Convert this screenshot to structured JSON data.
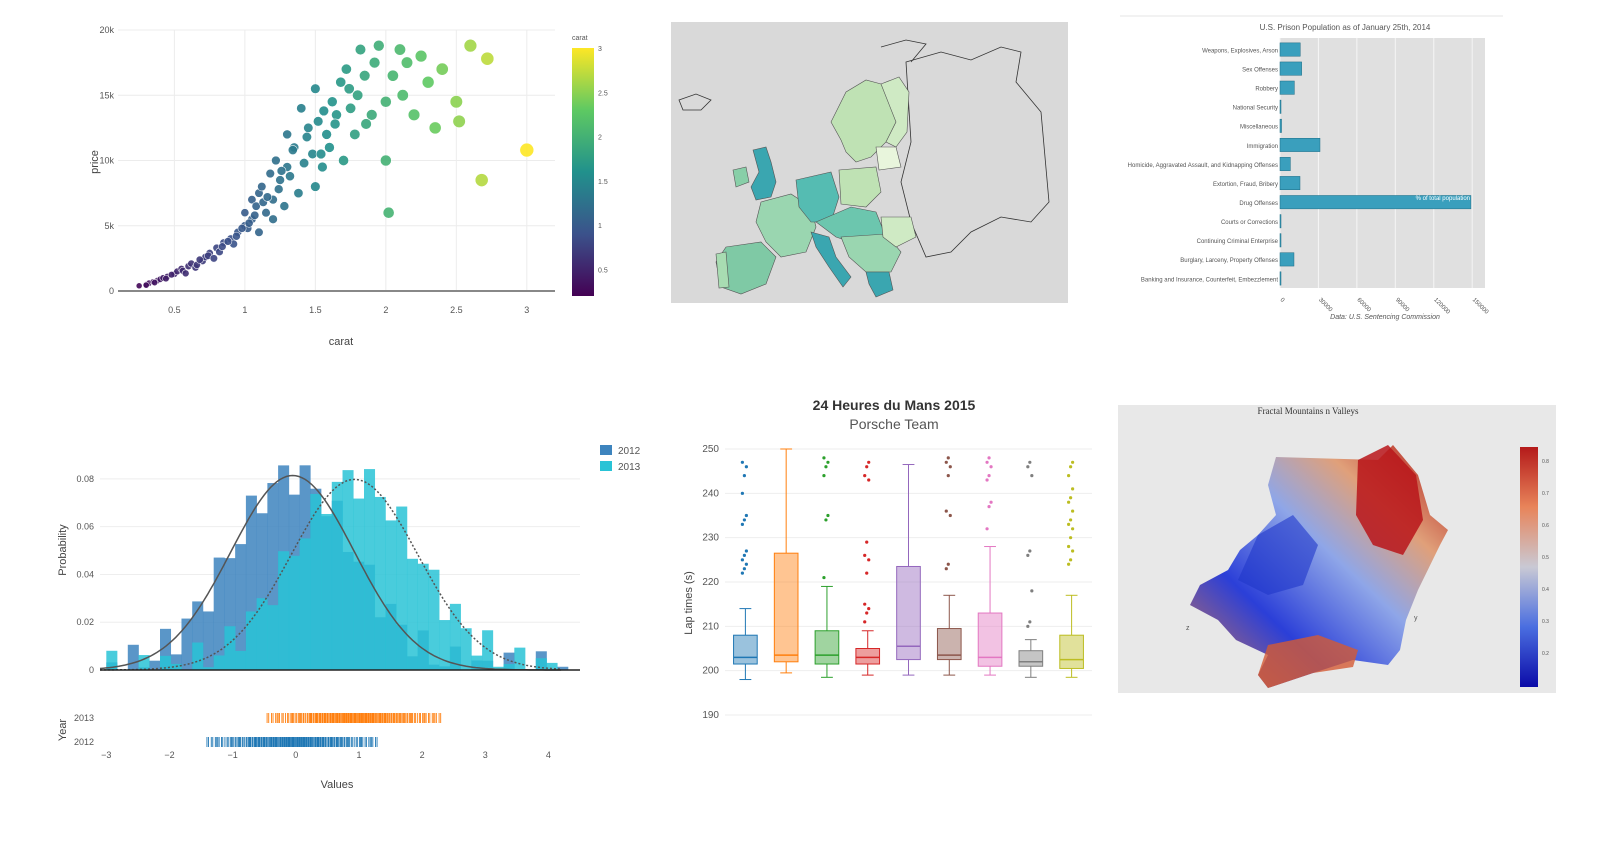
{
  "charts": {
    "scatter": {
      "chart_data": {
        "type": "scatter",
        "xlabel": "carat",
        "ylabel": "price",
        "x_ticks": [
          "0.5",
          "1",
          "1.5",
          "2",
          "2.5",
          "3"
        ],
        "y_ticks": [
          "0",
          "5k",
          "10k",
          "15k",
          "20k"
        ],
        "xlim": [
          0.1,
          3.2
        ],
        "ylim": [
          0,
          20000
        ],
        "colorbar": {
          "title": "carat",
          "ticks": [
            "0.5",
            "1",
            "1.5",
            "2",
            "2.5",
            "3"
          ],
          "range": [
            0.2,
            3.0
          ],
          "colors": [
            "#440154",
            "#3b528b",
            "#21918c",
            "#5ec962",
            "#fde725"
          ]
        },
        "points": [
          [
            0.25,
            400
          ],
          [
            0.3,
            500
          ],
          [
            0.32,
            600
          ],
          [
            0.35,
            700
          ],
          [
            0.38,
            800
          ],
          [
            0.4,
            900
          ],
          [
            0.42,
            1000
          ],
          [
            0.45,
            1100
          ],
          [
            0.5,
            1300
          ],
          [
            0.52,
            1500
          ],
          [
            0.55,
            1700
          ],
          [
            0.6,
            1900
          ],
          [
            0.62,
            2100
          ],
          [
            0.65,
            1800
          ],
          [
            0.7,
            2300
          ],
          [
            0.72,
            2600
          ],
          [
            0.75,
            2900
          ],
          [
            0.8,
            3300
          ],
          [
            0.82,
            3000
          ],
          [
            0.85,
            3700
          ],
          [
            0.9,
            4000
          ],
          [
            0.92,
            3600
          ],
          [
            0.95,
            4500
          ],
          [
            1.0,
            5000
          ],
          [
            1.0,
            6000
          ],
          [
            1.02,
            4800
          ],
          [
            1.05,
            5500
          ],
          [
            1.05,
            7000
          ],
          [
            1.08,
            6500
          ],
          [
            1.1,
            7500
          ],
          [
            1.1,
            4500
          ],
          [
            1.12,
            8000
          ],
          [
            1.15,
            6000
          ],
          [
            1.18,
            9000
          ],
          [
            1.2,
            5500
          ],
          [
            1.2,
            7000
          ],
          [
            1.22,
            10000
          ],
          [
            1.25,
            8500
          ],
          [
            1.28,
            6500
          ],
          [
            1.3,
            9500
          ],
          [
            1.3,
            12000
          ],
          [
            1.35,
            11000
          ],
          [
            1.38,
            7500
          ],
          [
            1.4,
            14000
          ],
          [
            1.45,
            12500
          ],
          [
            1.48,
            10500
          ],
          [
            1.5,
            15500
          ],
          [
            1.5,
            8000
          ],
          [
            1.52,
            13000
          ],
          [
            1.55,
            9500
          ],
          [
            1.58,
            12000
          ],
          [
            1.6,
            11000
          ],
          [
            1.62,
            14500
          ],
          [
            1.65,
            13500
          ],
          [
            1.68,
            16000
          ],
          [
            1.7,
            10000
          ],
          [
            1.72,
            17000
          ],
          [
            1.75,
            14000
          ],
          [
            1.78,
            12000
          ],
          [
            1.8,
            15000
          ],
          [
            1.82,
            18500
          ],
          [
            1.85,
            16500
          ],
          [
            1.9,
            13500
          ],
          [
            1.95,
            18800
          ],
          [
            2.0,
            14500
          ],
          [
            2.0,
            10000
          ],
          [
            2.02,
            6000
          ],
          [
            2.05,
            16500
          ],
          [
            2.1,
            18500
          ],
          [
            2.12,
            15000
          ],
          [
            2.15,
            17500
          ],
          [
            2.2,
            13500
          ],
          [
            2.25,
            18000
          ],
          [
            2.3,
            16000
          ],
          [
            2.35,
            12500
          ],
          [
            2.4,
            17000
          ],
          [
            2.5,
            14500
          ],
          [
            2.52,
            13000
          ],
          [
            2.6,
            18800
          ],
          [
            2.68,
            8500
          ],
          [
            2.72,
            17800
          ],
          [
            3.0,
            10800
          ],
          [
            0.3,
            450
          ],
          [
            0.36,
            650
          ],
          [
            0.44,
            950
          ],
          [
            0.48,
            1250
          ],
          [
            0.56,
            1550
          ],
          [
            0.58,
            1350
          ],
          [
            0.66,
            2000
          ],
          [
            0.68,
            2400
          ],
          [
            0.74,
            2700
          ],
          [
            0.78,
            2500
          ],
          [
            0.84,
            3400
          ],
          [
            0.88,
            3800
          ],
          [
            0.94,
            4200
          ],
          [
            0.98,
            4800
          ],
          [
            1.03,
            5200
          ],
          [
            1.07,
            5800
          ],
          [
            1.13,
            6800
          ],
          [
            1.16,
            7200
          ],
          [
            1.24,
            7800
          ],
          [
            1.26,
            9200
          ],
          [
            1.32,
            8800
          ],
          [
            1.34,
            10800
          ],
          [
            1.42,
            9800
          ],
          [
            1.44,
            11800
          ],
          [
            1.54,
            10500
          ],
          [
            1.56,
            13800
          ],
          [
            1.64,
            12800
          ],
          [
            1.74,
            15500
          ],
          [
            1.86,
            12800
          ],
          [
            1.92,
            17500
          ]
        ]
      }
    },
    "map": {
      "chart_data": {
        "type": "map"
      }
    },
    "prison": {
      "chart_data": {
        "type": "bar",
        "title": "U.S. Prison Population as of January 25th, 2014",
        "caption": "Data: U.S. Sentencing Commission",
        "annotation": "% of total population",
        "categories": [
          "Weapons, Explosives, Arson",
          "Sex Offenses",
          "Robbery",
          "National Security",
          "Miscellaneous",
          "Immigration",
          "Homicide, Aggravated Assault, and Kidnapping Offenses",
          "Extortion, Fraud, Bribery",
          "Drug Offenses",
          "Courts or Corrections",
          "Continuing Criminal Enterprise",
          "Burglary, Larceny, Property Offenses",
          "Banking and Insurance, Counterfeit, Embezzlement"
        ],
        "values": [
          15800,
          16900,
          11200,
          70,
          1200,
          31200,
          8100,
          15600,
          149000,
          600,
          500,
          10900,
          500
        ],
        "x_ticks": [
          "0",
          "30000",
          "60000",
          "90000",
          "120000",
          "150000"
        ],
        "xlim": [
          0,
          160000
        ]
      }
    },
    "histogram": {
      "chart_data": {
        "type": "histogram",
        "ylabel": "Probability",
        "xlabel": "Values",
        "rug_label": "Year",
        "x_ticks": [
          "−3",
          "−2",
          "−1",
          "0",
          "1",
          "2",
          "3",
          "4"
        ],
        "y_ticks": [
          "0",
          "0.02",
          "0.04",
          "0.06",
          "0.08"
        ],
        "xlim": [
          -3.1,
          4.5
        ],
        "ylim": [
          0,
          0.09
        ],
        "bin_width": 0.17,
        "series": [
          {
            "name": "2012",
            "mean": -0.05,
            "sd": 0.98,
            "color": "#3d84be"
          },
          {
            "name": "2013",
            "mean": 0.93,
            "sd": 1.0,
            "color": "#29c3d6"
          }
        ]
      }
    },
    "box": {
      "chart_data": {
        "type": "box",
        "title": "24 Heures du Mans 2015",
        "subtitle": "Porsche Team",
        "ylabel": "Lap times (s)",
        "y_ticks": [
          "190",
          "200",
          "210",
          "220",
          "230",
          "240",
          "250"
        ],
        "ylim": [
          190,
          250
        ],
        "boxes": [
          {
            "min": 198,
            "q1": 201.5,
            "median": 203,
            "q3": 208,
            "max": 214,
            "color": "#1f77b4",
            "outliers": [
              222,
              223,
              224,
              225,
              226,
              227,
              233,
              234,
              235,
              240,
              244,
              246,
              247
            ]
          },
          {
            "min": 199.5,
            "q1": 202,
            "median": 203.5,
            "q3": 226.5,
            "max": 250,
            "color": "#ff7f0e",
            "outliers": []
          },
          {
            "min": 198.5,
            "q1": 201.5,
            "median": 203.5,
            "q3": 209,
            "max": 219,
            "color": "#2ca02c",
            "outliers": [
              221,
              234,
              235,
              244,
              246,
              247,
              248
            ]
          },
          {
            "min": 199,
            "q1": 201.5,
            "median": 203,
            "q3": 205,
            "max": 209,
            "color": "#d62728",
            "outliers": [
              211,
              213,
              214,
              215,
              222,
              225,
              226,
              229,
              243,
              244,
              246,
              247
            ]
          },
          {
            "min": 199,
            "q1": 202.5,
            "median": 205.5,
            "q3": 223.5,
            "max": 246.5,
            "color": "#9467bd",
            "outliers": []
          },
          {
            "min": 199,
            "q1": 202.5,
            "median": 203.5,
            "q3": 209.5,
            "max": 217,
            "color": "#8c564b",
            "outliers": [
              223,
              224,
              235,
              236,
              244,
              246,
              247,
              248
            ]
          },
          {
            "min": 199,
            "q1": 201,
            "median": 203,
            "q3": 213,
            "max": 228,
            "color": "#e377c2",
            "outliers": [
              232,
              237,
              238,
              243,
              244,
              246,
              247,
              248
            ]
          },
          {
            "min": 198.5,
            "q1": 201,
            "median": 202,
            "q3": 204.5,
            "max": 207,
            "color": "#7f7f7f",
            "outliers": [
              210,
              211,
              218,
              226,
              227,
              244,
              246,
              247
            ]
          },
          {
            "min": 198.5,
            "q1": 200.5,
            "median": 202.5,
            "q3": 208,
            "max": 217,
            "color": "#bcbd22",
            "outliers": [
              224,
              225,
              227,
              228,
              230,
              232,
              233,
              234,
              236,
              238,
              239,
              241,
              244,
              246,
              247
            ]
          }
        ]
      }
    },
    "surface": {
      "chart_data": {
        "type": "surface",
        "title": "Fractal Mountains n Valleys",
        "axis_labels": [
          "z",
          "y"
        ],
        "colorbar": {
          "ticks": [
            "0.8",
            "0.7",
            "0.6",
            "0.5",
            "0.4",
            "0.3",
            "0.2"
          ],
          "colors": [
            "#0b0ba8",
            "#4a6ee0",
            "#c9c9d4",
            "#e8845a",
            "#b41a1a"
          ]
        }
      }
    }
  }
}
